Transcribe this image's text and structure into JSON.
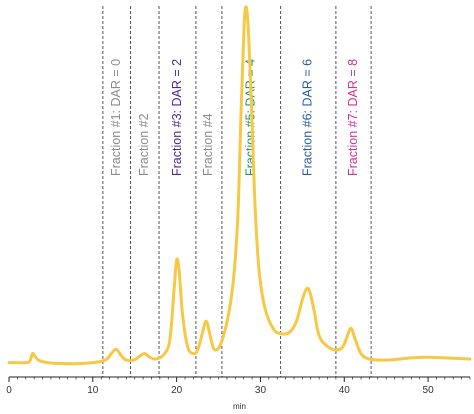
{
  "chart_data": {
    "type": "line",
    "title": "",
    "xlabel": "min",
    "ylabel": "",
    "xlim": [
      0,
      55
    ],
    "ylim": [
      0,
      100
    ],
    "x_ticks": [
      0,
      10,
      20,
      30,
      40,
      50
    ],
    "grid": false,
    "colors": {
      "trace": "#F7C843",
      "divider": "#555555",
      "axis": "#222222"
    },
    "series": [
      {
        "values_xy": [
          [
            0,
            1.5
          ],
          [
            2.0,
            1.5
          ],
          [
            2.5,
            2.0
          ],
          [
            2.8,
            4.0
          ],
          [
            3.1,
            3.2
          ],
          [
            3.7,
            2.0
          ],
          [
            5.0,
            1.4
          ],
          [
            8.0,
            1.2
          ],
          [
            10.0,
            1.5
          ],
          [
            11.5,
            2.2
          ],
          [
            12.2,
            4.0
          ],
          [
            12.8,
            5.2
          ],
          [
            13.4,
            3.4
          ],
          [
            14.0,
            2.2
          ],
          [
            15.0,
            2.3
          ],
          [
            15.7,
            3.5
          ],
          [
            16.2,
            4.0
          ],
          [
            16.8,
            3.0
          ],
          [
            17.5,
            2.5
          ],
          [
            18.5,
            3.8
          ],
          [
            19.2,
            8.0
          ],
          [
            19.7,
            22.0
          ],
          [
            20.0,
            30.0
          ],
          [
            20.3,
            27.0
          ],
          [
            20.7,
            15.0
          ],
          [
            21.3,
            6.0
          ],
          [
            22.0,
            4.0
          ],
          [
            22.5,
            5.0
          ],
          [
            23.0,
            9.0
          ],
          [
            23.5,
            13.0
          ],
          [
            23.9,
            10.0
          ],
          [
            24.4,
            5.5
          ],
          [
            25.0,
            5.5
          ],
          [
            25.6,
            9.0
          ],
          [
            26.2,
            15.0
          ],
          [
            26.8,
            25.0
          ],
          [
            27.3,
            42.0
          ],
          [
            27.7,
            72.0
          ],
          [
            28.0,
            92.0
          ],
          [
            28.2,
            100.0
          ],
          [
            28.5,
            96.0
          ],
          [
            28.9,
            75.0
          ],
          [
            29.3,
            48.0
          ],
          [
            29.8,
            28.0
          ],
          [
            30.5,
            17.0
          ],
          [
            31.5,
            11.0
          ],
          [
            32.5,
            9.5
          ],
          [
            33.5,
            10.0
          ],
          [
            34.3,
            13.0
          ],
          [
            35.0,
            19.0
          ],
          [
            35.5,
            22.0
          ],
          [
            35.9,
            21.0
          ],
          [
            36.4,
            16.0
          ],
          [
            37.0,
            9.0
          ],
          [
            38.0,
            6.0
          ],
          [
            39.0,
            5.0
          ],
          [
            39.8,
            5.8
          ],
          [
            40.3,
            8.5
          ],
          [
            40.8,
            11.0
          ],
          [
            41.3,
            8.0
          ],
          [
            42.0,
            4.0
          ],
          [
            43.0,
            2.5
          ],
          [
            45.0,
            2.2
          ],
          [
            48.0,
            2.8
          ],
          [
            50.0,
            3.0
          ],
          [
            52.0,
            2.8
          ],
          [
            55.0,
            2.5
          ]
        ]
      }
    ],
    "fraction_boundaries": [
      11.2,
      14.5,
      17.9,
      22.3,
      25.4,
      32.4,
      39.0,
      43.2
    ],
    "fractions": [
      {
        "label": "Fraction #1: DAR = 0",
        "color": "#8C8C8C"
      },
      {
        "label": "Fraction #2",
        "color": "#8C8C8C"
      },
      {
        "label": "Fraction #3: DAR = 2",
        "color": "#4B2A8F"
      },
      {
        "label": "Fraction #4",
        "color": "#8C8C8C"
      },
      {
        "label": "Fraction #5: DAR = 4",
        "color": "#1E9A60"
      },
      {
        "label": "Fraction #6: DAR = 6",
        "color": "#2A5EA8"
      },
      {
        "label": "Fraction #7: DAR = 8",
        "color": "#D6338C"
      }
    ]
  }
}
